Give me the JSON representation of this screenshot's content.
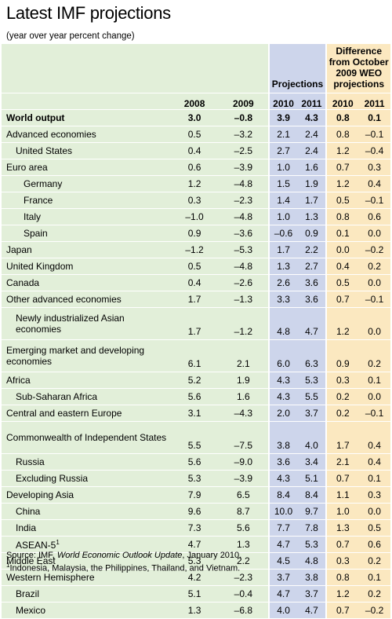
{
  "title": "Latest IMF projections",
  "subtitle": "(year over year percent change)",
  "header": {
    "projections_label": "Projections",
    "difference_label": "Difference from October 2009 WEO projections",
    "years": [
      "2008",
      "2009",
      "2010",
      "2011",
      "2010",
      "2011"
    ]
  },
  "rows": [
    {
      "label": "World output",
      "values": [
        "3.0",
        "–0.8",
        "3.9",
        "4.3",
        "0.8",
        "0.1"
      ]
    },
    {
      "label": "Advanced economies",
      "values": [
        "0.5",
        "–3.2",
        "2.1",
        "2.4",
        "0.8",
        "–0.1"
      ]
    },
    {
      "label": "United States",
      "values": [
        "0.4",
        "–2.5",
        "2.7",
        "2.4",
        "1.2",
        "–0.4"
      ]
    },
    {
      "label": "Euro area",
      "values": [
        "0.6",
        "–3.9",
        "1.0",
        "1.6",
        "0.7",
        "0.3"
      ]
    },
    {
      "label": "Germany",
      "values": [
        "1.2",
        "–4.8",
        "1.5",
        "1.9",
        "1.2",
        "0.4"
      ]
    },
    {
      "label": "France",
      "values": [
        "0.3",
        "–2.3",
        "1.4",
        "1.7",
        "0.5",
        "–0.1"
      ]
    },
    {
      "label": "Italy",
      "values": [
        "–1.0",
        "–4.8",
        "1.0",
        "1.3",
        "0.8",
        "0.6"
      ]
    },
    {
      "label": "Spain",
      "values": [
        "0.9",
        "–3.6",
        "–0.6",
        "0.9",
        "0.1",
        "0.0"
      ]
    },
    {
      "label": "Japan",
      "values": [
        "–1.2",
        "–5.3",
        "1.7",
        "2.2",
        "0.0",
        "–0.2"
      ]
    },
    {
      "label": "United Kingdom",
      "values": [
        "0.5",
        "–4.8",
        "1.3",
        "2.7",
        "0.4",
        "0.2"
      ]
    },
    {
      "label": "Canada",
      "values": [
        "0.4",
        "–2.6",
        "2.6",
        "3.6",
        "0.5",
        "0.0"
      ]
    },
    {
      "label": "Other advanced economies",
      "values": [
        "1.7",
        "–1.3",
        "3.3",
        "3.6",
        "0.7",
        "–0.1"
      ]
    },
    {
      "label": "Newly industrialized Asian economies",
      "values": [
        "1.7",
        "–1.2",
        "4.8",
        "4.7",
        "1.2",
        "0.0"
      ]
    },
    {
      "label": "Emerging market and developing economies",
      "values": [
        "6.1",
        "2.1",
        "6.0",
        "6.3",
        "0.9",
        "0.2"
      ]
    },
    {
      "label": "Africa",
      "values": [
        "5.2",
        "1.9",
        "4.3",
        "5.3",
        "0.3",
        "0.1"
      ]
    },
    {
      "label": "Sub-Saharan Africa",
      "values": [
        "5.6",
        "1.6",
        "4.3",
        "5.5",
        "0.2",
        "0.0"
      ]
    },
    {
      "label": "Central and eastern Europe",
      "values": [
        "3.1",
        "–4.3",
        "2.0",
        "3.7",
        "0.2",
        "–0.1"
      ]
    },
    {
      "label": "Commonwealth of Independent States",
      "values": [
        "5.5",
        "–7.5",
        "3.8",
        "4.0",
        "1.7",
        "0.4"
      ]
    },
    {
      "label": "Russia",
      "values": [
        "5.6",
        "–9.0",
        "3.6",
        "3.4",
        "2.1",
        "0.4"
      ]
    },
    {
      "label": "Excluding Russia",
      "values": [
        "5.3",
        "–3.9",
        "4.3",
        "5.1",
        "0.7",
        "0.1"
      ]
    },
    {
      "label": "Developing Asia",
      "values": [
        "7.9",
        "6.5",
        "8.4",
        "8.4",
        "1.1",
        "0.3"
      ]
    },
    {
      "label": "China",
      "values": [
        "9.6",
        "8.7",
        "10.0",
        "9.7",
        "1.0",
        "0.0"
      ]
    },
    {
      "label": "India",
      "values": [
        "7.3",
        "5.6",
        "7.7",
        "7.8",
        "1.3",
        "0.5"
      ]
    },
    {
      "label": "ASEAN-5",
      "values": [
        "4.7",
        "1.3",
        "4.7",
        "5.3",
        "0.7",
        "0.6"
      ]
    },
    {
      "label": "Middle East",
      "values": [
        "5.3",
        "2.2",
        "4.5",
        "4.8",
        "0.3",
        "0.2"
      ]
    },
    {
      "label": "Western Hemisphere",
      "values": [
        "4.2",
        "–2.3",
        "3.7",
        "3.8",
        "0.8",
        "0.1"
      ]
    },
    {
      "label": "Brazil",
      "values": [
        "5.1",
        "–0.4",
        "4.7",
        "3.7",
        "1.2",
        "0.2"
      ]
    },
    {
      "label": "Mexico",
      "values": [
        "1.3",
        "–6.8",
        "4.0",
        "4.7",
        "0.7",
        "–0.2"
      ]
    }
  ],
  "footnote_marker": "1",
  "source": {
    "prefix": "Source: IMF,",
    "publication": "World Economic Outlook Update",
    "suffix": ", January 2010."
  },
  "footnote": "Indonesia, Malaysia, the Philippines, Thailand, and Vietnam.",
  "colors": {
    "green_panel": "#e2efd9",
    "blue_panel": "#cdd5eb",
    "orange_panel": "#fbe8c0"
  }
}
